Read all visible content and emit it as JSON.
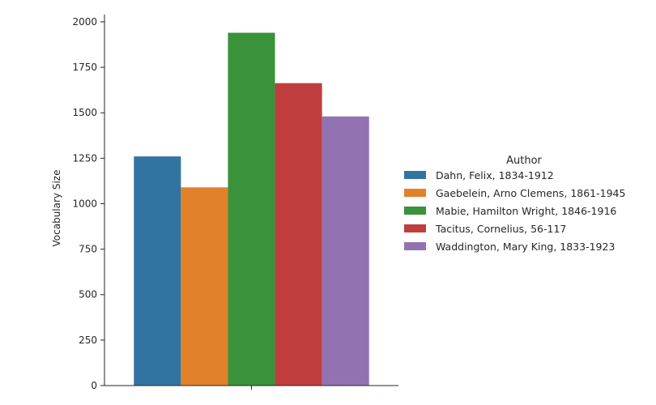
{
  "chart_data": {
    "type": "bar",
    "title": "",
    "xlabel": "",
    "ylabel": "Vocabulary Size",
    "ylim": [
      0,
      2040
    ],
    "yticks": [
      0,
      250,
      500,
      750,
      1000,
      1250,
      1500,
      1750,
      2000
    ],
    "categories": [
      ""
    ],
    "legend": {
      "title": "Author",
      "placement": "right"
    },
    "grid": false,
    "series": [
      {
        "name": "Dahn, Felix, 1834-1912",
        "values": [
          1260
        ],
        "color": "#3274a1"
      },
      {
        "name": "Gaebelein, Arno Clemens, 1861-1945",
        "values": [
          1090
        ],
        "color": "#e1812c"
      },
      {
        "name": "Mabie, Hamilton Wright, 1846-1916",
        "values": [
          1940
        ],
        "color": "#3a923a"
      },
      {
        "name": "Tacitus, Cornelius, 56-117",
        "values": [
          1663
        ],
        "color": "#c03d3e"
      },
      {
        "name": "Waddington, Mary King, 1833-1923",
        "values": [
          1480
        ],
        "color": "#9372b2"
      }
    ]
  }
}
